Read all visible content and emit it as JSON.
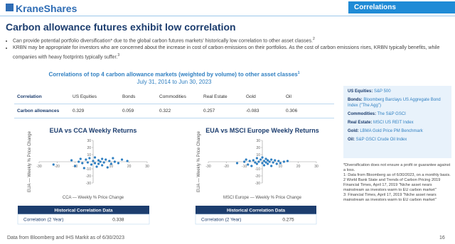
{
  "header": {
    "logo": "KraneShares",
    "tab": "Correlations"
  },
  "title": "Carbon allowance futures exhibit low correlation",
  "bullets": [
    {
      "text": "Can provide potential portfolio diversification* due to the global carbon futures markets' historically low correlation to other asset classes.",
      "note": "2"
    },
    {
      "text": "KRBN may be appropriate for investors who are concerned about the increase in cost of carbon emissions on their portfolios. As the cost of carbon emissions rises, KRBN typically benefits, while companies with heavy footprints typically suffer.",
      "note": "3"
    }
  ],
  "table": {
    "title": "Correlations of top 4 carbon allowance markets (weighted by volume) to other asset classes",
    "title_note": "1",
    "subtitle": "July 31, 2014 to Jun 30, 2023",
    "header": [
      "Correlation",
      "US Equities",
      "Bonds",
      "Commodities",
      "Real Estate",
      "Gold",
      "Oil"
    ],
    "rows": [
      [
        "Carbon allowances",
        0.329,
        0.059,
        0.322,
        0.257,
        -0.083,
        0.306
      ]
    ]
  },
  "legend": [
    {
      "label": "US Equities:",
      "value": "S&P 500"
    },
    {
      "label": "Bonds:",
      "value": "Bloomberg Barclays US Aggregate Bond Index (\"The Agg\")"
    },
    {
      "label": "Commodities:",
      "value": "The S&P GSCI"
    },
    {
      "label": "Real Estate:",
      "value": "MSCI US REIT Index"
    },
    {
      "label": "Gold:",
      "value": "LBMA Gold Price PM Benchmark"
    },
    {
      "label": "Oil:",
      "value": "S&P GSCI Crude Oil Index"
    }
  ],
  "footnotes": [
    "*Diversification does not ensure a profit or guarantee against a loss.",
    "1: Data from Bloomberg as of 6/30/2023, on a monthly basis.",
    "2 World Bank State and Trends of Carbon Pricing 2019 Financial Times, April 17, 2019 \"Niche asset nears mainstream as investors warm to EU carbon market\"",
    "3: Financial Times, April 17, 2019 \"Niche asset nears mainstream as investors warm to EU carbon market\""
  ],
  "chart_data": [
    {
      "type": "scatter",
      "title": "EUA vs CCA Weekly Returns",
      "xlabel": "CCA — Weekly % Price Change",
      "ylabel": "EUA — Weekly % Price Change",
      "color": "#2f7fc1",
      "x": [
        -22,
        -12,
        -10,
        -8,
        -7,
        -6,
        -5,
        -4,
        -3,
        -2,
        -1,
        0,
        1,
        1,
        2,
        3,
        3,
        4,
        5,
        5,
        6,
        7,
        8,
        9,
        10,
        11,
        12,
        14,
        16,
        19
      ],
      "values": [
        -4,
        2,
        -6,
        0,
        4,
        -2,
        -9,
        3,
        -1,
        5,
        -4,
        1,
        -2,
        6,
        -7,
        2,
        -3,
        0,
        4,
        -5,
        -1,
        3,
        -8,
        1,
        -3,
        5,
        0,
        -2,
        3,
        1
      ],
      "xlim": [
        -30,
        30
      ],
      "ylim": [
        -30,
        30
      ],
      "xticks": [
        -30,
        -20,
        -10,
        10,
        20,
        30
      ],
      "yticks": [
        -30,
        -20,
        -10,
        10,
        20,
        30
      ],
      "stat_title": "Historical Correlation Data",
      "stat_label": "Correlation (2 Year)",
      "stat_value": 0.338
    },
    {
      "type": "scatter",
      "title": "EUA vs MSCI Europe Weekly Returns",
      "xlabel": "MSCI Europe — Weekly % Price Change",
      "ylabel": "EUA — Weekly % Price Change",
      "color": "#2f7fc1",
      "x": [
        -14,
        -10,
        -9,
        -8,
        -7,
        -6,
        -5,
        -4,
        -3,
        -3,
        -2,
        -1,
        0,
        0,
        1,
        1,
        2,
        2,
        3,
        3,
        4,
        5,
        5,
        6,
        7,
        8,
        9,
        10,
        12,
        14
      ],
      "values": [
        -2,
        0,
        3,
        -4,
        1,
        -6,
        2,
        -1,
        5,
        -3,
        0,
        3,
        -2,
        6,
        -5,
        1,
        -1,
        4,
        -3,
        2,
        0,
        -6,
        3,
        -1,
        2,
        -3,
        1,
        -2,
        0,
        1
      ],
      "xlim": [
        -30,
        30
      ],
      "ylim": [
        -30,
        30
      ],
      "xticks": [
        -30,
        -20,
        -10,
        10,
        20,
        30
      ],
      "yticks": [
        -30,
        -20,
        -10,
        10,
        20,
        30
      ],
      "stat_title": "Historical Correlation Data",
      "stat_label": "Correlation (2 Year)",
      "stat_value": 0.275
    }
  ],
  "footer": {
    "source": "Data from Bloomberg and IHS Markit as of 6/30/2023",
    "page": "16"
  }
}
